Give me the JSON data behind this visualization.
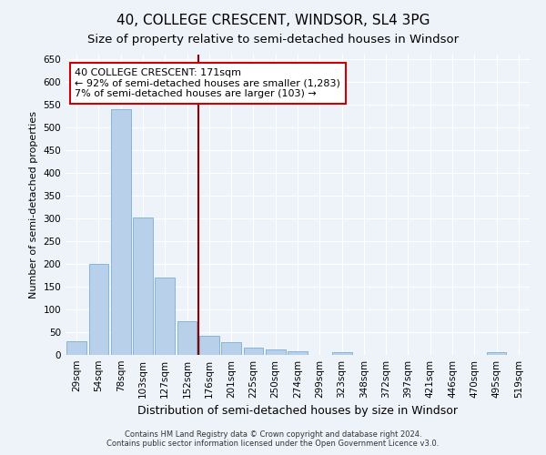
{
  "title1": "40, COLLEGE CRESCENT, WINDSOR, SL4 3PG",
  "title2": "Size of property relative to semi-detached houses in Windsor",
  "xlabel": "Distribution of semi-detached houses by size in Windsor",
  "ylabel": "Number of semi-detached properties",
  "categories": [
    "29sqm",
    "54sqm",
    "78sqm",
    "103sqm",
    "127sqm",
    "152sqm",
    "176sqm",
    "201sqm",
    "225sqm",
    "250sqm",
    "274sqm",
    "299sqm",
    "323sqm",
    "348sqm",
    "372sqm",
    "397sqm",
    "421sqm",
    "446sqm",
    "470sqm",
    "495sqm",
    "519sqm"
  ],
  "values": [
    30,
    200,
    540,
    303,
    170,
    75,
    42,
    28,
    16,
    13,
    8,
    0,
    7,
    0,
    0,
    0,
    0,
    0,
    0,
    7,
    0
  ],
  "bar_color": "#b8d0ea",
  "bar_edge_color": "#7aaed4",
  "vline_index": 6,
  "vline_color": "#8b0000",
  "annotation_line1": "40 COLLEGE CRESCENT: 171sqm",
  "annotation_line2": "← 92% of semi-detached houses are smaller (1,283)",
  "annotation_line3": "7% of semi-detached houses are larger (103) →",
  "annotation_box_color": "#ffffff",
  "annotation_box_edge": "#cc0000",
  "footnote1": "Contains HM Land Registry data © Crown copyright and database right 2024.",
  "footnote2": "Contains public sector information licensed under the Open Government Licence v3.0.",
  "ylim": [
    0,
    660
  ],
  "yticks": [
    0,
    50,
    100,
    150,
    200,
    250,
    300,
    350,
    400,
    450,
    500,
    550,
    600,
    650
  ],
  "background_color": "#eef2f9",
  "grid_color": "#ffffff",
  "title1_fontsize": 11,
  "title2_fontsize": 9.5,
  "xlabel_fontsize": 9,
  "ylabel_fontsize": 8,
  "tick_fontsize": 7.5,
  "footnote_fontsize": 6
}
